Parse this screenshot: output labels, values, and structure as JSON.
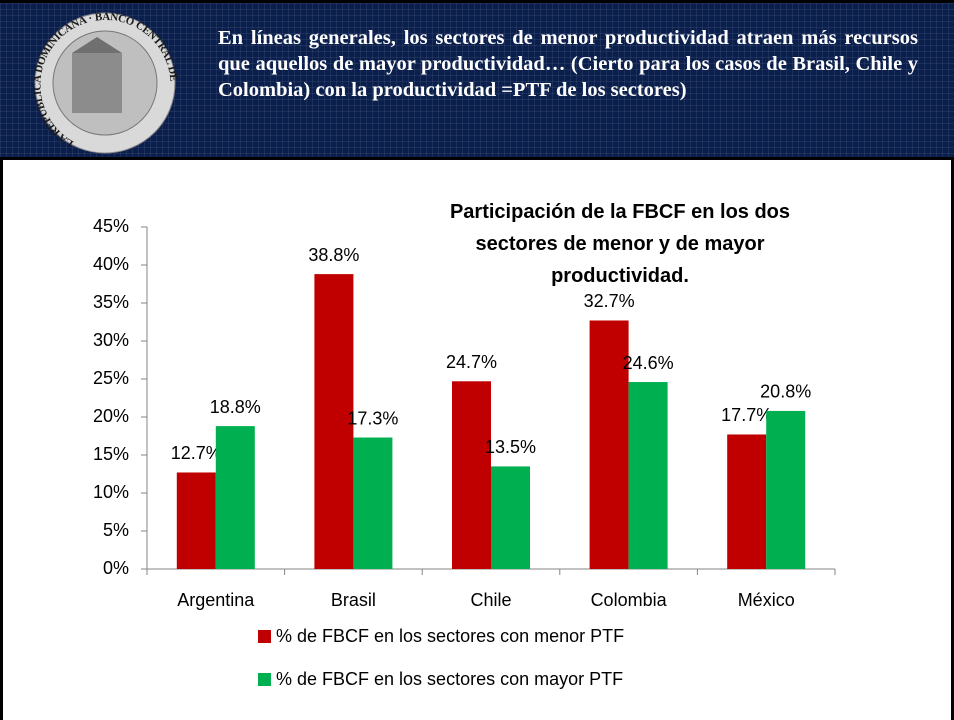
{
  "header": {
    "title": "En líneas generales, los sectores de menor productividad atraen más recursos que aquellos de mayor productividad… (Cierto para los casos de Brasil, Chile y Colombia) con la productividad =PTF de los sectores)",
    "seal": "LA REPUBLICA DOMINICANA · BANCO CENTRAL DE"
  },
  "chart_data": {
    "type": "bar",
    "title": "Participación de la FBCF en los dos sectores de menor y de mayor productividad.",
    "categories": [
      "Argentina",
      "Brasil",
      "Chile",
      "Colombia",
      "México"
    ],
    "series": [
      {
        "name": "% de FBCF en los sectores con menor PTF",
        "color": "#c00000",
        "values": [
          12.7,
          38.8,
          24.7,
          32.7,
          17.7
        ],
        "value_labels": [
          "12.7%",
          "38.8%",
          "24.7%",
          "32.7%",
          "17.7%"
        ]
      },
      {
        "name": "% de FBCF en los sectores con mayor PTF",
        "color": "#00b050",
        "values": [
          18.8,
          17.3,
          13.5,
          24.6,
          20.8
        ],
        "value_labels": [
          "18.8%",
          "17.3%",
          "13.5%",
          "24.6%",
          "20.8%"
        ]
      }
    ],
    "ylim": [
      0,
      45
    ],
    "yticks": [
      {
        "value": 0,
        "label": "0%"
      },
      {
        "value": 5,
        "label": "5%"
      },
      {
        "value": 10,
        "label": "10%"
      },
      {
        "value": 15,
        "label": "15%"
      },
      {
        "value": 20,
        "label": "20%"
      },
      {
        "value": 25,
        "label": "25%"
      },
      {
        "value": 30,
        "label": "30%"
      },
      {
        "value": 35,
        "label": "35%"
      },
      {
        "value": 40,
        "label": "40%"
      },
      {
        "value": 45,
        "label": "45%"
      }
    ],
    "grid": false,
    "legend": "bottom"
  }
}
